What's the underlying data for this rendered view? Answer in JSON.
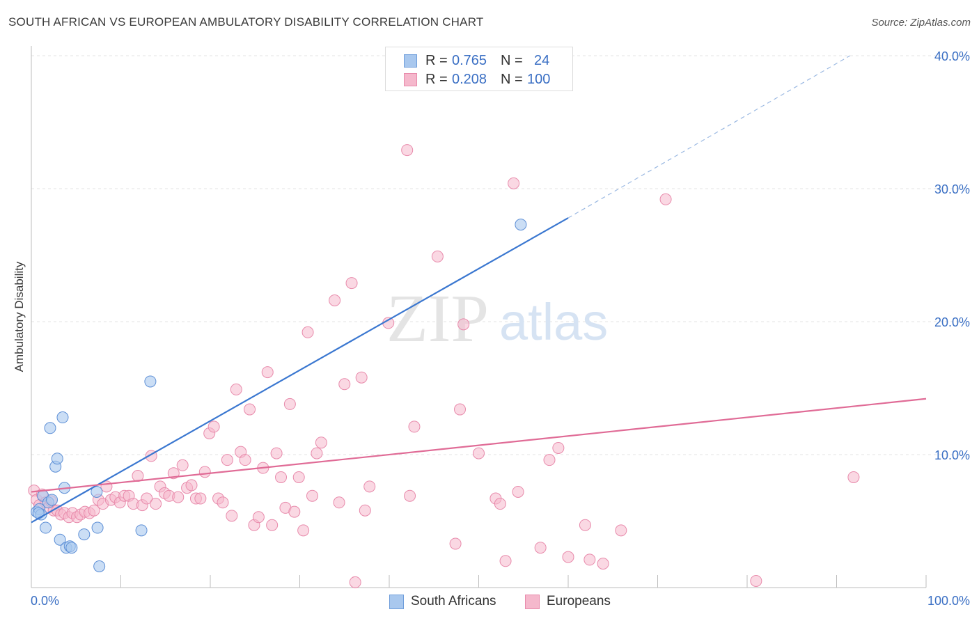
{
  "header": {
    "title": "SOUTH AFRICAN VS EUROPEAN AMBULATORY DISABILITY CORRELATION CHART",
    "source": "Source: ZipAtlas.com"
  },
  "legend": {
    "rows": [
      {
        "r_label": "R =",
        "r_value": "0.765",
        "n_label": "N =",
        "n_value": "24"
      },
      {
        "r_label": "R =",
        "r_value": "0.208",
        "n_label": "N =",
        "n_value": "100"
      }
    ]
  },
  "watermark": {
    "zip": "ZIP",
    "atlas": "atlas"
  },
  "colors": {
    "south_africans": "#3a77d0",
    "south_africans_fill": "#a9c8ee",
    "europeans": "#e06b96",
    "europeans_fill": "#f5b8cc",
    "tick_label": "#3a6fc4"
  },
  "chart_data": {
    "type": "scatter",
    "title": "SOUTH AFRICAN VS EUROPEAN AMBULATORY DISABILITY CORRELATION CHART",
    "ylabel": "Ambulatory Disability",
    "xlabel": "",
    "xlim": [
      0,
      100
    ],
    "ylim": [
      0,
      40
    ],
    "x_tick_labels": [
      "0.0%",
      "100.0%"
    ],
    "y_ticks": [
      10,
      20,
      30,
      40
    ],
    "y_tick_labels": [
      "10.0%",
      "20.0%",
      "30.0%",
      "40.0%"
    ],
    "grid": true,
    "legend_position": "top-center",
    "series": [
      {
        "name": "South Africans",
        "points": [
          [
            0.6,
            5.7
          ],
          [
            0.9,
            5.9
          ],
          [
            1.1,
            5.5
          ],
          [
            1.3,
            6.9
          ],
          [
            1.6,
            4.5
          ],
          [
            1.9,
            6.4
          ],
          [
            2.1,
            12.0
          ],
          [
            2.3,
            6.6
          ],
          [
            2.7,
            9.1
          ],
          [
            2.9,
            9.7
          ],
          [
            3.2,
            3.6
          ],
          [
            3.5,
            12.8
          ],
          [
            3.7,
            7.5
          ],
          [
            3.9,
            3.0
          ],
          [
            4.3,
            3.1
          ],
          [
            4.5,
            3.0
          ],
          [
            5.9,
            4.0
          ],
          [
            7.4,
            4.5
          ],
          [
            7.6,
            1.6
          ],
          [
            7.3,
            7.2
          ],
          [
            12.3,
            4.3
          ],
          [
            13.3,
            15.5
          ],
          [
            54.7,
            27.3
          ],
          [
            0.8,
            5.6
          ]
        ],
        "trendline": {
          "x": [
            0,
            60
          ],
          "y": [
            4.9,
            27.8
          ],
          "dashed_extension_to": [
            91.5,
            40.0
          ]
        }
      },
      {
        "name": "Europeans",
        "points": [
          [
            0.3,
            7.3
          ],
          [
            0.6,
            6.6
          ],
          [
            0.9,
            6.2
          ],
          [
            1.2,
            7.0
          ],
          [
            1.6,
            6.4
          ],
          [
            1.9,
            6.0
          ],
          [
            2.2,
            6.5
          ],
          [
            2.5,
            5.8
          ],
          [
            2.9,
            5.8
          ],
          [
            3.3,
            5.5
          ],
          [
            3.7,
            5.6
          ],
          [
            4.2,
            5.3
          ],
          [
            4.6,
            5.6
          ],
          [
            5.1,
            5.3
          ],
          [
            5.5,
            5.5
          ],
          [
            6.0,
            5.7
          ],
          [
            6.5,
            5.6
          ],
          [
            7.0,
            5.8
          ],
          [
            7.5,
            6.6
          ],
          [
            8.0,
            6.3
          ],
          [
            8.4,
            7.6
          ],
          [
            8.9,
            6.6
          ],
          [
            9.4,
            6.8
          ],
          [
            9.9,
            6.4
          ],
          [
            10.4,
            6.9
          ],
          [
            10.9,
            6.9
          ],
          [
            11.4,
            6.3
          ],
          [
            11.9,
            8.4
          ],
          [
            12.4,
            6.2
          ],
          [
            12.9,
            6.7
          ],
          [
            13.4,
            9.9
          ],
          [
            13.9,
            6.3
          ],
          [
            14.4,
            7.6
          ],
          [
            14.9,
            7.1
          ],
          [
            15.4,
            6.9
          ],
          [
            15.9,
            8.6
          ],
          [
            16.4,
            6.8
          ],
          [
            16.9,
            9.2
          ],
          [
            17.4,
            7.5
          ],
          [
            17.9,
            7.7
          ],
          [
            18.4,
            6.7
          ],
          [
            18.9,
            6.7
          ],
          [
            19.4,
            8.7
          ],
          [
            19.9,
            11.6
          ],
          [
            20.4,
            12.1
          ],
          [
            20.9,
            6.7
          ],
          [
            21.4,
            6.4
          ],
          [
            21.9,
            9.6
          ],
          [
            22.4,
            5.4
          ],
          [
            22.9,
            14.9
          ],
          [
            23.4,
            10.2
          ],
          [
            23.9,
            9.6
          ],
          [
            24.4,
            13.4
          ],
          [
            24.9,
            4.7
          ],
          [
            25.4,
            5.3
          ],
          [
            25.9,
            9.0
          ],
          [
            26.4,
            16.2
          ],
          [
            26.9,
            4.7
          ],
          [
            27.4,
            10.1
          ],
          [
            27.9,
            8.3
          ],
          [
            28.4,
            6.0
          ],
          [
            28.9,
            13.8
          ],
          [
            29.4,
            5.7
          ],
          [
            29.9,
            8.3
          ],
          [
            30.4,
            4.3
          ],
          [
            30.9,
            19.2
          ],
          [
            31.4,
            6.9
          ],
          [
            31.9,
            10.1
          ],
          [
            32.4,
            10.9
          ],
          [
            33.9,
            21.6
          ],
          [
            34.4,
            6.4
          ],
          [
            35.0,
            15.3
          ],
          [
            35.8,
            22.9
          ],
          [
            36.2,
            0.4
          ],
          [
            36.9,
            15.8
          ],
          [
            37.3,
            5.8
          ],
          [
            37.8,
            7.6
          ],
          [
            39.9,
            19.9
          ],
          [
            42.0,
            32.9
          ],
          [
            42.3,
            6.9
          ],
          [
            42.8,
            12.1
          ],
          [
            45.4,
            24.9
          ],
          [
            47.4,
            3.3
          ],
          [
            47.9,
            13.4
          ],
          [
            48.3,
            19.8
          ],
          [
            50.0,
            10.1
          ],
          [
            51.9,
            6.7
          ],
          [
            52.4,
            6.3
          ],
          [
            53.0,
            2.0
          ],
          [
            53.9,
            30.4
          ],
          [
            54.4,
            7.2
          ],
          [
            56.9,
            3.0
          ],
          [
            57.9,
            9.6
          ],
          [
            58.9,
            10.5
          ],
          [
            60.0,
            2.3
          ],
          [
            61.9,
            4.7
          ],
          [
            62.4,
            2.1
          ],
          [
            63.9,
            1.8
          ],
          [
            65.9,
            4.3
          ],
          [
            70.9,
            29.2
          ]
        ],
        "extra_points": [
          [
            81.0,
            0.5
          ],
          [
            91.9,
            8.3
          ]
        ],
        "trendline": {
          "x": [
            0,
            100
          ],
          "y": [
            7.2,
            14.2
          ]
        }
      }
    ]
  },
  "bottom_legend": [
    {
      "label": "South Africans"
    },
    {
      "label": "Europeans"
    }
  ]
}
